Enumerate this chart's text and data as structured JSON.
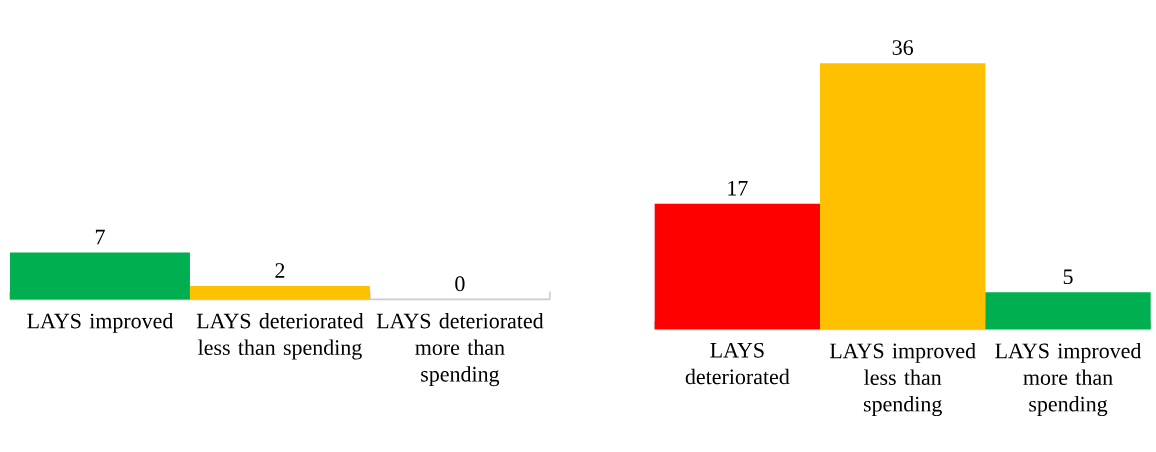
{
  "chart_data": [
    {
      "type": "bar",
      "categories": [
        "LAYS improved",
        "LAYS deteriorated less than spending",
        "LAYS deteriorated more than spending"
      ],
      "values": [
        7,
        2,
        0
      ],
      "colors": [
        "#00b050",
        "#ffc000",
        "#ff0000"
      ],
      "data_labels": true
    },
    {
      "type": "bar",
      "categories": [
        "LAYS deteriorated",
        "LAYS improved less than spending",
        "LAYS improved more than spending"
      ],
      "values": [
        17,
        36,
        5
      ],
      "colors": [
        "#ff0000",
        "#ffc000",
        "#00b050"
      ],
      "data_labels": true
    }
  ]
}
